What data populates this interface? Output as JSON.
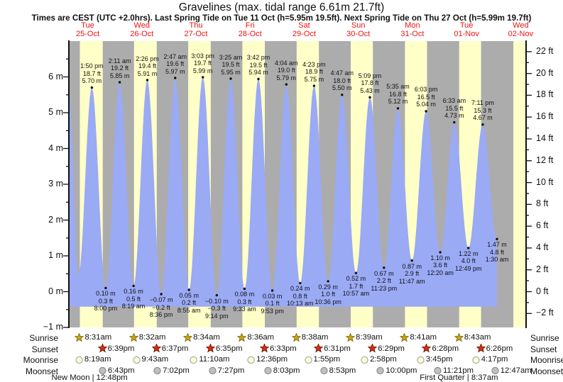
{
  "title": "Gravelines (max. tidal range 6.61m 21.7ft)",
  "subtitle": "Times are CEST (UTC +2.0hrs). Last Spring Tide on Tue 11 Oct (h=5.95m 19.5ft). Next Spring Tide on Thu 27 Oct (h=5.99m 19.7ft)",
  "days": [
    {
      "name": "Tue",
      "date": "25-Oct"
    },
    {
      "name": "Wed",
      "date": "26-Oct"
    },
    {
      "name": "Thu",
      "date": "27-Oct"
    },
    {
      "name": "Fri",
      "date": "28-Oct"
    },
    {
      "name": "Sat",
      "date": "29-Oct"
    },
    {
      "name": "Sun",
      "date": "30-Oct"
    },
    {
      "name": "Mon",
      "date": "31-Oct"
    },
    {
      "name": "Tue",
      "date": "01-Nov"
    },
    {
      "name": "Wed",
      "date": "02-Nov"
    }
  ],
  "chart_data": {
    "type": "area",
    "y_m": {
      "min": -1,
      "max": 7,
      "labels": [
        {
          "v": 6,
          "label": "6 m"
        },
        {
          "v": 5,
          "label": "5 m"
        },
        {
          "v": 4,
          "label": "4 m"
        },
        {
          "v": 3,
          "label": "3 m"
        },
        {
          "v": 2,
          "label": "2 m"
        },
        {
          "v": 1,
          "label": "1 m"
        },
        {
          "v": 0,
          "label": "0 m"
        },
        {
          "v": -1,
          "label": "−1 m"
        }
      ]
    },
    "y_ft": {
      "labels": [
        {
          "v": 22,
          "label": "22 ft"
        },
        {
          "v": 20,
          "label": "20 ft"
        },
        {
          "v": 18,
          "label": "18 ft"
        },
        {
          "v": 16,
          "label": "16 ft"
        },
        {
          "v": 14,
          "label": "14 ft"
        },
        {
          "v": 12,
          "label": "12 ft"
        },
        {
          "v": 10,
          "label": "10 ft"
        },
        {
          "v": 8,
          "label": "8 ft"
        },
        {
          "v": 6,
          "label": "6 ft"
        },
        {
          "v": 4,
          "label": "4 ft"
        },
        {
          "v": 2,
          "label": "2 ft"
        },
        {
          "v": 0,
          "label": "0 ft"
        },
        {
          "v": -2,
          "label": "−2 ft"
        }
      ]
    },
    "time": {
      "t_start": 0.152,
      "t_end": 8.6,
      "edge_start_m": 5.57,
      "fill_bottom_m": -0.42
    },
    "day_stripes": [
      [
        0.3549,
        0.7771
      ],
      [
        1.3556,
        1.7757
      ],
      [
        2.3569,
        2.7743
      ],
      [
        3.3583,
        3.7729
      ],
      [
        4.3597,
        4.7715
      ],
      [
        5.3604,
        5.7701
      ],
      [
        6.3618,
        6.7694
      ],
      [
        7.3632,
        7.7681
      ],
      [
        8.3646,
        8.6
      ]
    ],
    "extremes": [
      {
        "kind": "low",
        "t": 0.327,
        "m": 0.45
      },
      {
        "kind": "high",
        "t": 0.5764,
        "m": 5.7,
        "lines": [
          "1:50 pm",
          "18.7 ft",
          "5.70 m"
        ]
      },
      {
        "kind": "low",
        "t": 0.8333,
        "m": 0.1,
        "lines": [
          "0.10 m",
          "0.3 ft",
          "8:00 pm"
        ]
      },
      {
        "kind": "high",
        "t": 1.091,
        "m": 5.85,
        "lines": [
          "2:11 am",
          "19.2 ft",
          "5.85 m"
        ]
      },
      {
        "kind": "low",
        "t": 1.3465,
        "m": 0.16,
        "lines": [
          "0.16 m",
          "0.5 ft",
          "8:19 am"
        ]
      },
      {
        "kind": "high",
        "t": 1.6014,
        "m": 5.91,
        "lines": [
          "2:26 pm",
          "19.4 ft",
          "5.91 m"
        ]
      },
      {
        "kind": "low",
        "t": 1.8583,
        "m": -0.07,
        "lines": [
          "−0.07 m",
          "−0.2 ft",
          "8:36 pm"
        ]
      },
      {
        "kind": "high",
        "t": 2.116,
        "m": 5.97,
        "lines": [
          "2:47 am",
          "19.6 ft",
          "5.97 m"
        ]
      },
      {
        "kind": "low",
        "t": 2.3715,
        "m": 0.05,
        "lines": [
          "0.05 m",
          "0.2 ft",
          "8:55 am"
        ]
      },
      {
        "kind": "high",
        "t": 2.6271,
        "m": 5.99,
        "lines": [
          "3:03 pm",
          "19.7 ft",
          "5.99 m"
        ]
      },
      {
        "kind": "low",
        "t": 2.8847,
        "m": -0.1,
        "lines": [
          "−0.10 m",
          "−0.3 ft",
          "9:14 pm"
        ]
      },
      {
        "kind": "high",
        "t": 3.1424,
        "m": 5.95,
        "lines": [
          "3:25 am",
          "19.5 ft",
          "5.95 m"
        ]
      },
      {
        "kind": "low",
        "t": 3.3979,
        "m": 0.08,
        "lines": [
          "0.08 m",
          "0.3 ft",
          "9:33 am"
        ]
      },
      {
        "kind": "high",
        "t": 3.6542,
        "m": 5.94,
        "lines": [
          "3:42 pm",
          "19.5 ft",
          "5.94 m"
        ]
      },
      {
        "kind": "low",
        "t": 3.9118,
        "m": 0.03,
        "lines": [
          "0.03 m",
          "0.1 ft",
          "9:53 pm"
        ]
      },
      {
        "kind": "high",
        "t": 4.1694,
        "m": 5.79,
        "lines": [
          "4:04 am",
          "19.0 ft",
          "5.79 m"
        ]
      },
      {
        "kind": "low",
        "t": 4.4257,
        "m": 0.24,
        "lines": [
          "0.24 m",
          "0.8 ft",
          "10:13 am"
        ]
      },
      {
        "kind": "high",
        "t": 4.6826,
        "m": 5.75,
        "lines": [
          "4:23 pm",
          "18.9 ft",
          "5.75 m"
        ]
      },
      {
        "kind": "low",
        "t": 4.9417,
        "m": 0.29,
        "lines": [
          "0.29 m",
          "1.0 ft",
          "10:36 pm"
        ]
      },
      {
        "kind": "high",
        "t": 5.1993,
        "m": 5.5,
        "lines": [
          "4:47 am",
          "18.0 ft",
          "5.50 m"
        ]
      },
      {
        "kind": "low",
        "t": 5.4563,
        "m": 0.52,
        "lines": [
          "0.52 m",
          "1.7 ft",
          "10:57 am"
        ]
      },
      {
        "kind": "high",
        "t": 5.7146,
        "m": 5.43,
        "lines": [
          "5:09 pm",
          "17.8 ft",
          "5.43 m"
        ]
      },
      {
        "kind": "low",
        "t": 5.9743,
        "m": 0.67,
        "lines": [
          "0.67 m",
          "2.2 ft",
          "11:23 pm"
        ]
      },
      {
        "kind": "high",
        "t": 6.2326,
        "m": 5.12,
        "lines": [
          "5:35 am",
          "16.8 ft",
          "5.12 m"
        ]
      },
      {
        "kind": "low",
        "t": 6.491,
        "m": 0.87,
        "lines": [
          "0.87 m",
          "2.9 ft",
          "11:47 am"
        ]
      },
      {
        "kind": "high",
        "t": 6.7521,
        "m": 5.04,
        "lines": [
          "6:03 pm",
          "16.5 ft",
          "5.04 m"
        ]
      },
      {
        "kind": "low",
        "t": 7.0139,
        "m": 1.1,
        "lines": [
          "1.10 m",
          "3.6 ft",
          "12:20 am"
        ]
      },
      {
        "kind": "high",
        "t": 7.2729,
        "m": 4.73,
        "lines": [
          "6:33 am",
          "15.5 ft",
          "4.73 m"
        ]
      },
      {
        "kind": "low",
        "t": 7.534,
        "m": 1.22,
        "lines": [
          "1.22 m",
          "4.0 ft",
          "12:49 pm"
        ]
      },
      {
        "kind": "high",
        "t": 7.7993,
        "m": 4.67,
        "lines": [
          "7:11 pm",
          "15.3 ft",
          "4.67 m"
        ]
      },
      {
        "kind": "low",
        "t": 8.0625,
        "m": 1.47,
        "lines": [
          "1.47 m",
          "4.8 ft",
          "1:30 am"
        ]
      }
    ]
  },
  "sun_moon": {
    "rows": [
      {
        "id": "sunrise",
        "label": "Sunrise",
        "icon": "sunrise-star",
        "events": [
          {
            "time": "8:31am",
            "t": 0.3549
          },
          {
            "time": "8:32am",
            "t": 1.3556
          },
          {
            "time": "8:34am",
            "t": 2.3569
          },
          {
            "time": "8:36am",
            "t": 3.3583
          },
          {
            "time": "8:38am",
            "t": 4.3597
          },
          {
            "time": "8:39am",
            "t": 5.3604
          },
          {
            "time": "8:41am",
            "t": 6.3618
          },
          {
            "time": "8:43am",
            "t": 7.3632
          }
        ]
      },
      {
        "id": "sunset",
        "label": "Sunset",
        "icon": "sunset-star",
        "events": [
          {
            "time": "6:39pm",
            "t": 0.7771
          },
          {
            "time": "6:37pm",
            "t": 1.7757
          },
          {
            "time": "6:35pm",
            "t": 2.7743
          },
          {
            "time": "6:33pm",
            "t": 3.7729
          },
          {
            "time": "6:31pm",
            "t": 4.7715
          },
          {
            "time": "6:29pm",
            "t": 5.7701
          },
          {
            "time": "6:28pm",
            "t": 6.7694
          },
          {
            "time": "6:26pm",
            "t": 7.7681
          }
        ]
      },
      {
        "id": "moonrise",
        "label": "Moonrise",
        "icon": "moonrise-circle",
        "events": [
          {
            "time": "8:19am",
            "t": 0.3465
          },
          {
            "time": "9:43am",
            "t": 1.4049
          },
          {
            "time": "11:10am",
            "t": 2.4653
          },
          {
            "time": "12:36pm",
            "t": 3.525
          },
          {
            "time": "1:55pm",
            "t": 4.5799
          },
          {
            "time": "2:58pm",
            "t": 5.6236
          },
          {
            "time": "3:45pm",
            "t": 6.6563
          },
          {
            "time": "4:17pm",
            "t": 7.6785
          }
        ]
      },
      {
        "id": "moonset",
        "label": "Moonset",
        "icon": "moonset-circle",
        "events": [
          {
            "time": "6:43pm",
            "t": 0.7799
          },
          {
            "time": "7:02pm",
            "t": 1.7931
          },
          {
            "time": "7:27pm",
            "t": 2.8104
          },
          {
            "time": "8:03pm",
            "t": 3.8354
          },
          {
            "time": "8:53pm",
            "t": 4.8701
          },
          {
            "time": "10:00pm",
            "t": 5.9167
          },
          {
            "time": "11:21pm",
            "t": 6.9729
          },
          {
            "time": "12:47am",
            "t": 8.0326
          }
        ]
      }
    ],
    "phases": [
      {
        "label": "New Moon | 12:48pm",
        "t": 0.5333
      },
      {
        "label": "First Quarter | 8:37am",
        "t": 7.359
      }
    ]
  },
  "colors": {
    "night_stripe": "#acacac",
    "day_stripe": "#ffffc8",
    "tide_fill": "#9aaaf5",
    "axis": "#111111",
    "day_label_red": "#ee1111",
    "sunrise_fill": "#c7a51c",
    "sunrise_stroke": "#8a7312",
    "sunset_fill": "#dd2d0f",
    "sunset_stroke": "#7c1503",
    "moonrise_fill": "#ffffd6",
    "moonrise_stroke": "#9a9a9a",
    "moonset_fill": "#bfbfbf",
    "moonset_stroke": "#808080"
  }
}
